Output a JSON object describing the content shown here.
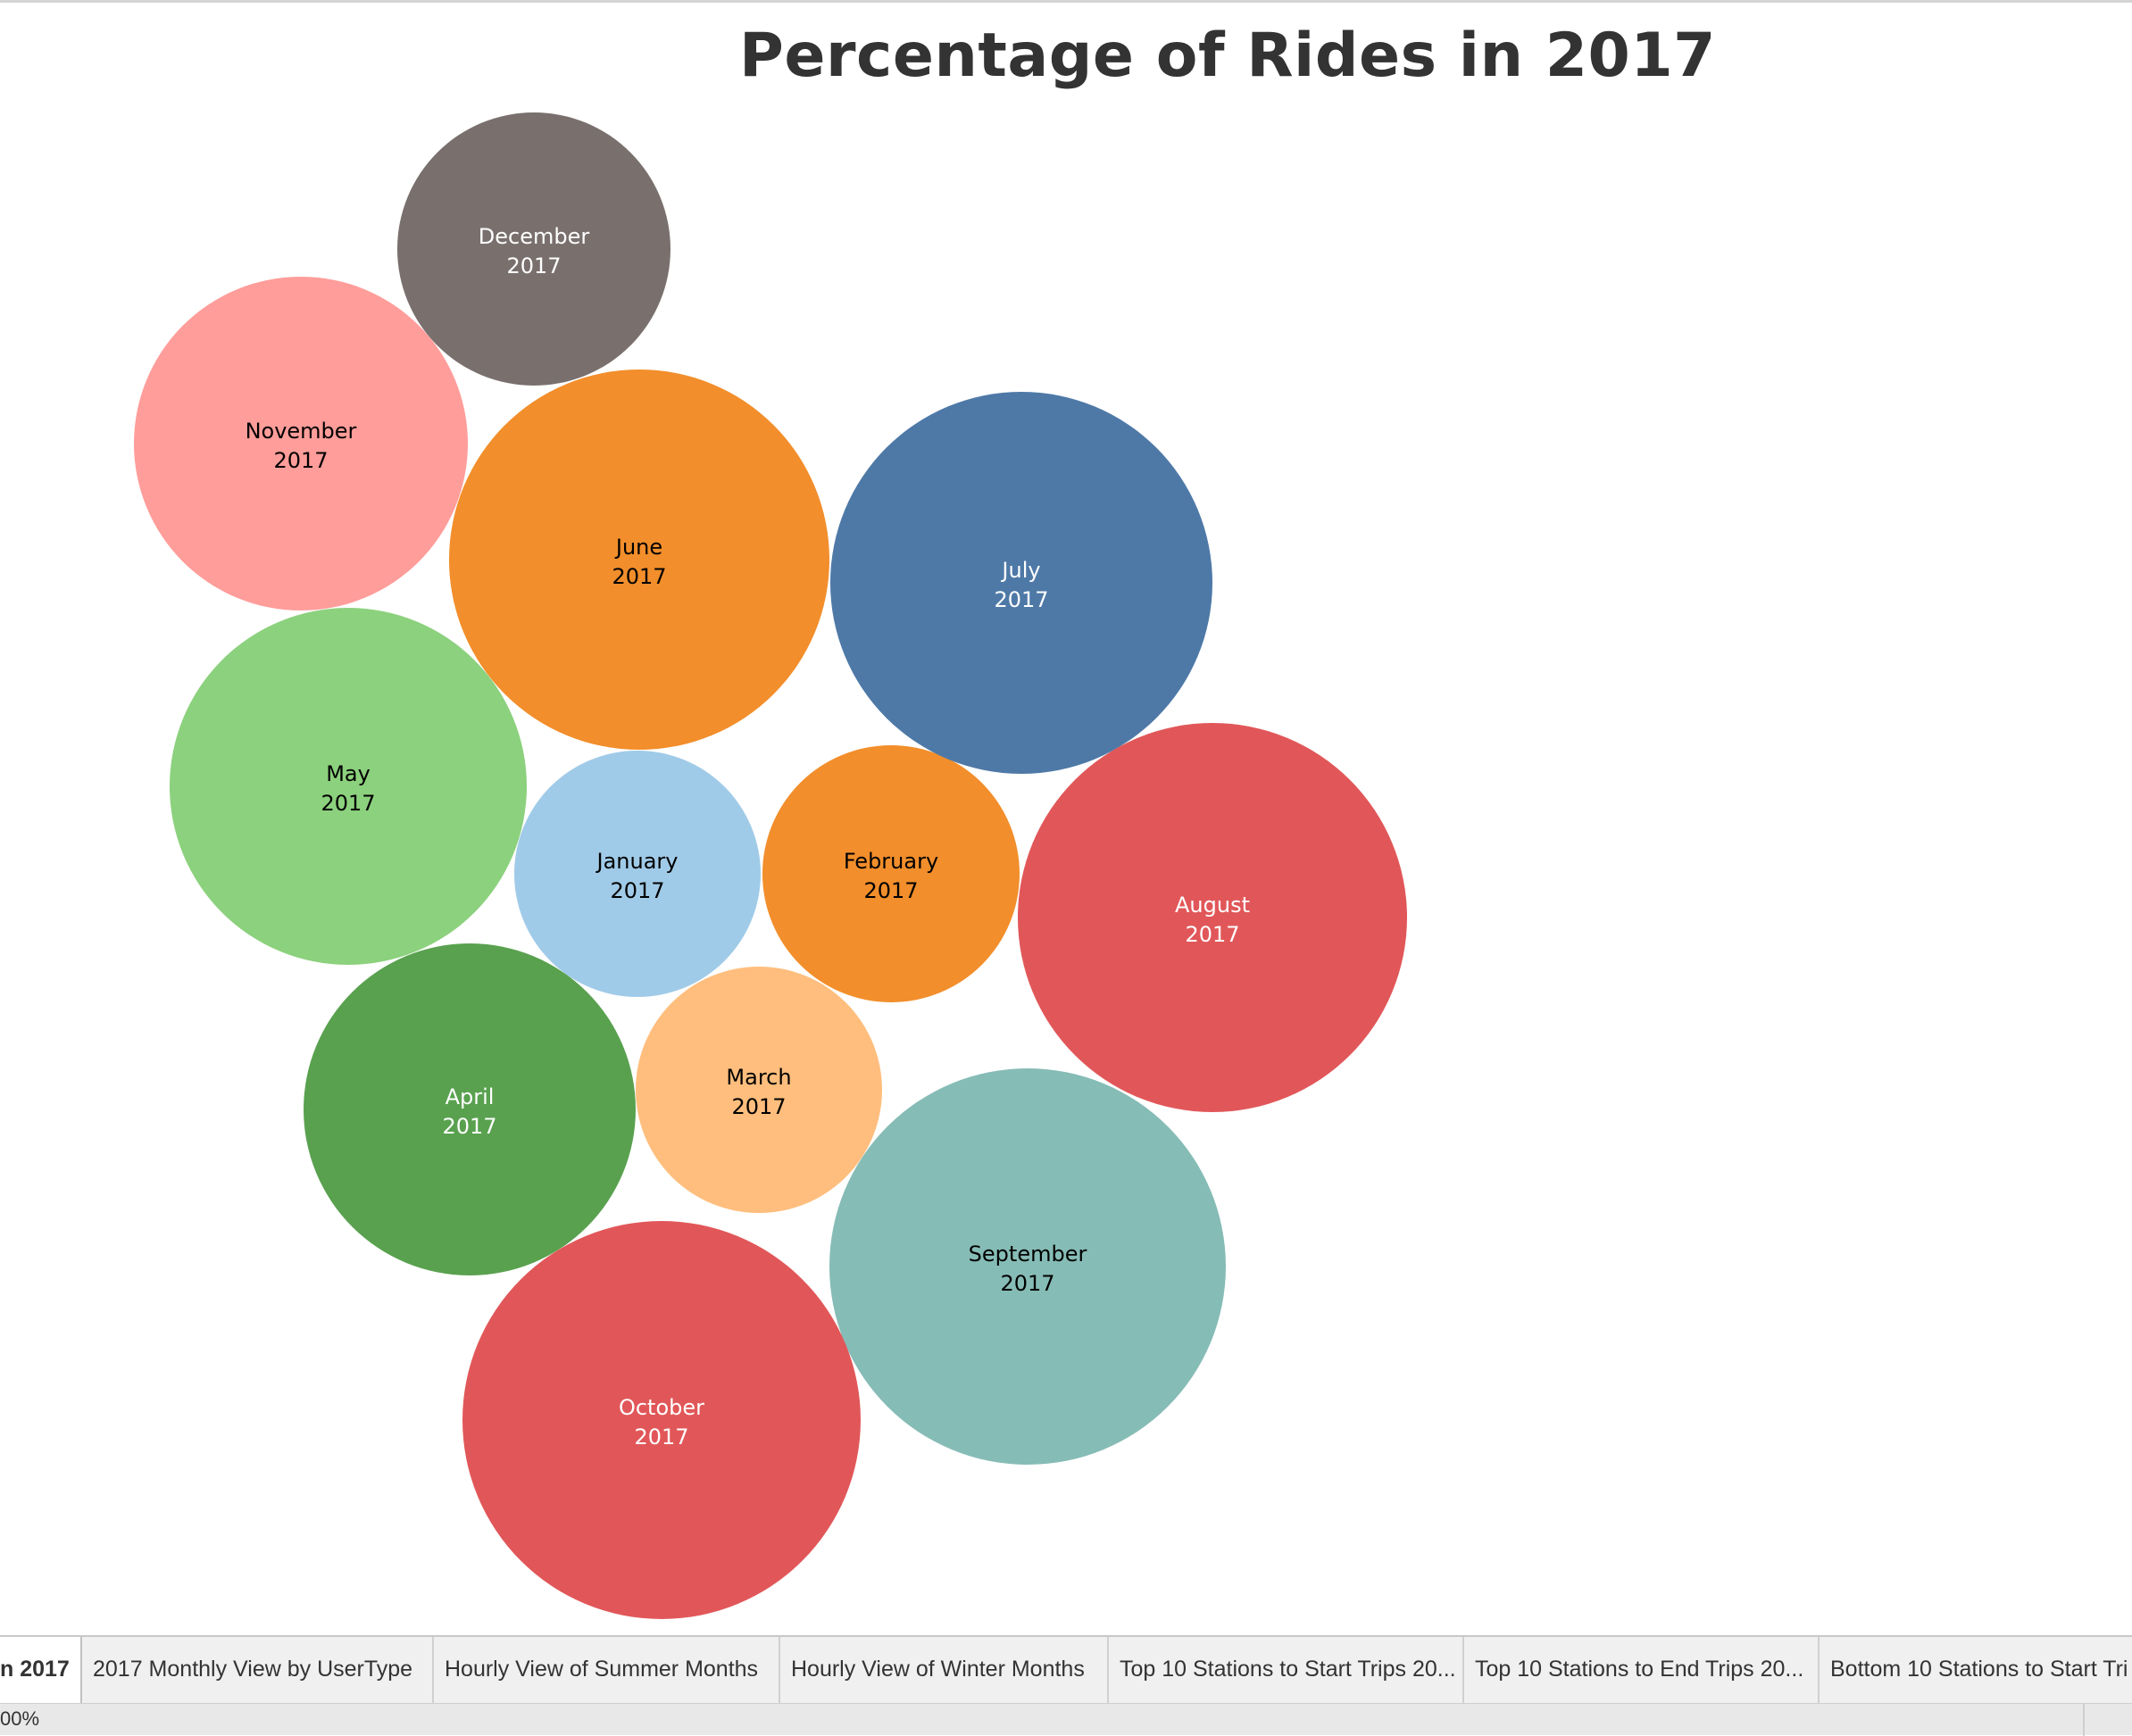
{
  "chart_data": {
    "type": "packed-bubble",
    "title": "Percentage of Rides in 2017",
    "series": [
      {
        "name": "January",
        "year": "2017",
        "color": "#a0cbe8",
        "text_color": "#000000"
      },
      {
        "name": "February",
        "year": "2017",
        "color": "#f28e2b",
        "text_color": "#000000"
      },
      {
        "name": "March",
        "year": "2017",
        "color": "#ffbe7d",
        "text_color": "#000000"
      },
      {
        "name": "April",
        "year": "2017",
        "color": "#59a14f",
        "text_color": "#ffffff"
      },
      {
        "name": "May",
        "year": "2017",
        "color": "#8cd17d",
        "text_color": "#000000"
      },
      {
        "name": "June",
        "year": "2017",
        "color": "#f28e2b",
        "text_color": "#000000"
      },
      {
        "name": "July",
        "year": "2017",
        "color": "#4e79a7",
        "text_color": "#ffffff"
      },
      {
        "name": "August",
        "year": "2017",
        "color": "#e15759",
        "text_color": "#ffffff"
      },
      {
        "name": "September",
        "year": "2017",
        "color": "#86bcb6",
        "text_color": "#000000"
      },
      {
        "name": "October",
        "year": "2017",
        "color": "#e15759",
        "text_color": "#ffffff"
      },
      {
        "name": "November",
        "year": "2017",
        "color": "#ff9d9a",
        "text_color": "#000000"
      },
      {
        "name": "December",
        "year": "2017",
        "color": "#79706e",
        "text_color": "#ffffff"
      }
    ]
  },
  "tabs": [
    {
      "label": "n 2017",
      "active": true
    },
    {
      "label": "2017 Monthly View by UserType",
      "active": false
    },
    {
      "label": "Hourly View of Summer Months",
      "active": false
    },
    {
      "label": "Hourly View of Winter Months",
      "active": false
    },
    {
      "label": "Top 10 Stations to Start Trips 20...",
      "active": false
    },
    {
      "label": "Top 10 Stations to End Trips 20...",
      "active": false
    },
    {
      "label": "Bottom 10 Stations to Start Tri",
      "active": false
    }
  ],
  "status": {
    "zoom": "00%"
  }
}
